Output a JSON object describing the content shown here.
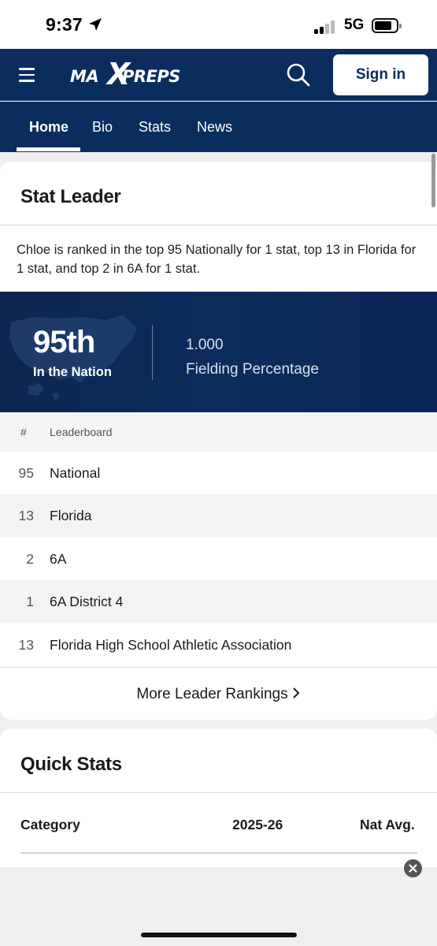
{
  "status_bar": {
    "time": "9:37",
    "network": "5G"
  },
  "header": {
    "logo_left": "MA",
    "logo_x": "X",
    "logo_right": "PREPS",
    "signin_label": "Sign in"
  },
  "nav": {
    "tabs": [
      {
        "label": "Home",
        "active": true
      },
      {
        "label": "Bio"
      },
      {
        "label": "Stats"
      },
      {
        "label": "News"
      }
    ]
  },
  "stat_leader": {
    "title": "Stat Leader",
    "summary": "Chloe is ranked in the top 95 Nationally for 1 stat, top 13 in Florida for 1 stat, and top 2 in 6A for 1 stat.",
    "hero": {
      "rank": "95th",
      "rank_label": "In the Nation",
      "value": "1.000",
      "stat_name": "Fielding Percentage"
    },
    "table": {
      "headers": {
        "rank": "#",
        "board": "Leaderboard"
      },
      "rows": [
        {
          "rank": "95",
          "name": "National"
        },
        {
          "rank": "13",
          "name": "Florida"
        },
        {
          "rank": "2",
          "name": "6A"
        },
        {
          "rank": "1",
          "name": "6A District 4"
        },
        {
          "rank": "13",
          "name": "Florida High School Athletic Association"
        }
      ]
    },
    "more_label": "More Leader Rankings"
  },
  "quick_stats": {
    "title": "Quick Stats",
    "headers": {
      "category": "Category",
      "season": "2025-26",
      "nat_avg": "Nat Avg."
    }
  },
  "colors": {
    "brand_navy": "#0b2d5e",
    "background": "#efefef"
  },
  "icons": [
    "location-arrow-icon",
    "signal-icon",
    "battery-icon",
    "hamburger-icon",
    "search-icon",
    "chevron-right-icon",
    "close-icon"
  ]
}
